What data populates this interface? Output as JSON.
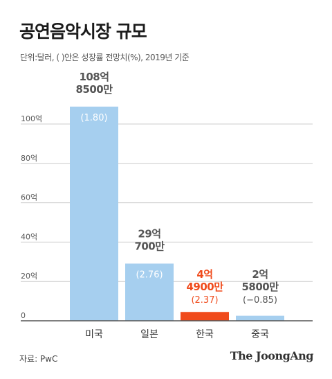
{
  "title": "공연음악시장 규모",
  "subtitle": "단위:달러, ( )안은 성장률 전망치(%), 2019년 기준",
  "source": "자료: PwC",
  "brand": "The JoongAng",
  "colors": {
    "bar": "#a6cfef",
    "highlight": "#f04b1c",
    "value_text": "#555555",
    "growth_text": "#ffffff",
    "grid": "#cccccc",
    "axis": "#555555"
  },
  "chart_data": {
    "type": "bar",
    "categories": [
      "미국",
      "일본",
      "한국",
      "중국"
    ],
    "values": [
      108.85,
      29.07,
      4.49,
      2.58
    ],
    "value_labels": [
      [
        "108억",
        "8500만"
      ],
      [
        "29억",
        "700만"
      ],
      [
        "4억",
        "4900만"
      ],
      [
        "2억",
        "5800만"
      ]
    ],
    "growth_labels": [
      "(1.80)",
      "(2.76)",
      "(2.37)",
      "(−0.85)"
    ],
    "highlight_index": 2,
    "y_ticks": [
      0,
      20,
      40,
      60,
      80,
      100
    ],
    "y_tick_labels": [
      "0",
      "20억",
      "40억",
      "60억",
      "80억",
      "100억"
    ],
    "ylim": [
      0,
      100
    ],
    "grid": true
  }
}
